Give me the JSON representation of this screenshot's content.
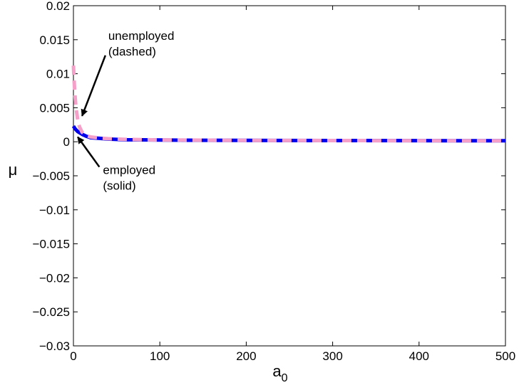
{
  "chart_data": {
    "type": "line",
    "xlabel": "a",
    "xlabel_subscript": "0",
    "ylabel": "μ",
    "xlim": [
      0,
      500
    ],
    "ylim": [
      -0.03,
      0.02
    ],
    "grid": false,
    "x_ticks": [
      {
        "value": 0,
        "label": "0"
      },
      {
        "value": 100,
        "label": "100"
      },
      {
        "value": 200,
        "label": "200"
      },
      {
        "value": 300,
        "label": "300"
      },
      {
        "value": 400,
        "label": "400"
      },
      {
        "value": 500,
        "label": "500"
      }
    ],
    "y_ticks": [
      {
        "value": 0.02,
        "label": "0.02"
      },
      {
        "value": 0.015,
        "label": "0.015"
      },
      {
        "value": 0.01,
        "label": "0.01"
      },
      {
        "value": 0.005,
        "label": "0.005"
      },
      {
        "value": 0,
        "label": "0"
      },
      {
        "value": -0.005,
        "label": "−0.005"
      },
      {
        "value": -0.01,
        "label": "−0.01"
      },
      {
        "value": -0.015,
        "label": "−0.015"
      },
      {
        "value": -0.02,
        "label": "−0.02"
      },
      {
        "value": -0.025,
        "label": "−0.025"
      },
      {
        "value": -0.03,
        "label": "−0.03"
      }
    ],
    "series": [
      {
        "key": "employed",
        "style": "solid",
        "color": "#0000ee",
        "x": [
          0,
          2,
          5,
          10,
          15,
          20,
          30,
          40,
          60,
          80,
          100,
          150,
          200,
          300,
          400,
          500
        ],
        "y": [
          0.0023,
          0.0019,
          0.0015,
          0.0011,
          0.0008,
          0.0006,
          0.0005,
          0.0004,
          0.0003,
          0.00028,
          0.00025,
          0.00022,
          0.0002,
          0.00018,
          0.00016,
          0.00015
        ]
      },
      {
        "key": "unemployed",
        "style": "dashed",
        "color": "#f4a0c8",
        "x": [
          0,
          1,
          2,
          3,
          5,
          7,
          10,
          15,
          20,
          30,
          40,
          60,
          80,
          100,
          150,
          200,
          300,
          400,
          500
        ],
        "y": [
          0.0112,
          0.0085,
          0.0065,
          0.005,
          0.0032,
          0.0022,
          0.0014,
          0.0009,
          0.0007,
          0.00055,
          0.00045,
          0.00035,
          0.0003,
          0.00027,
          0.00023,
          0.0002,
          0.00018,
          0.00016,
          0.00015
        ]
      }
    ],
    "annotations": [
      {
        "key": "unemployed",
        "lines": [
          "unemployed",
          "(dashed)"
        ],
        "arrow_from": [
          37,
          0.0127
        ],
        "arrow_to": [
          10,
          0.0038
        ]
      },
      {
        "key": "employed",
        "lines": [
          "employed",
          "(solid)"
        ],
        "arrow_from": [
          30,
          -0.0037
        ],
        "arrow_to": [
          5,
          0.0007
        ]
      }
    ]
  }
}
